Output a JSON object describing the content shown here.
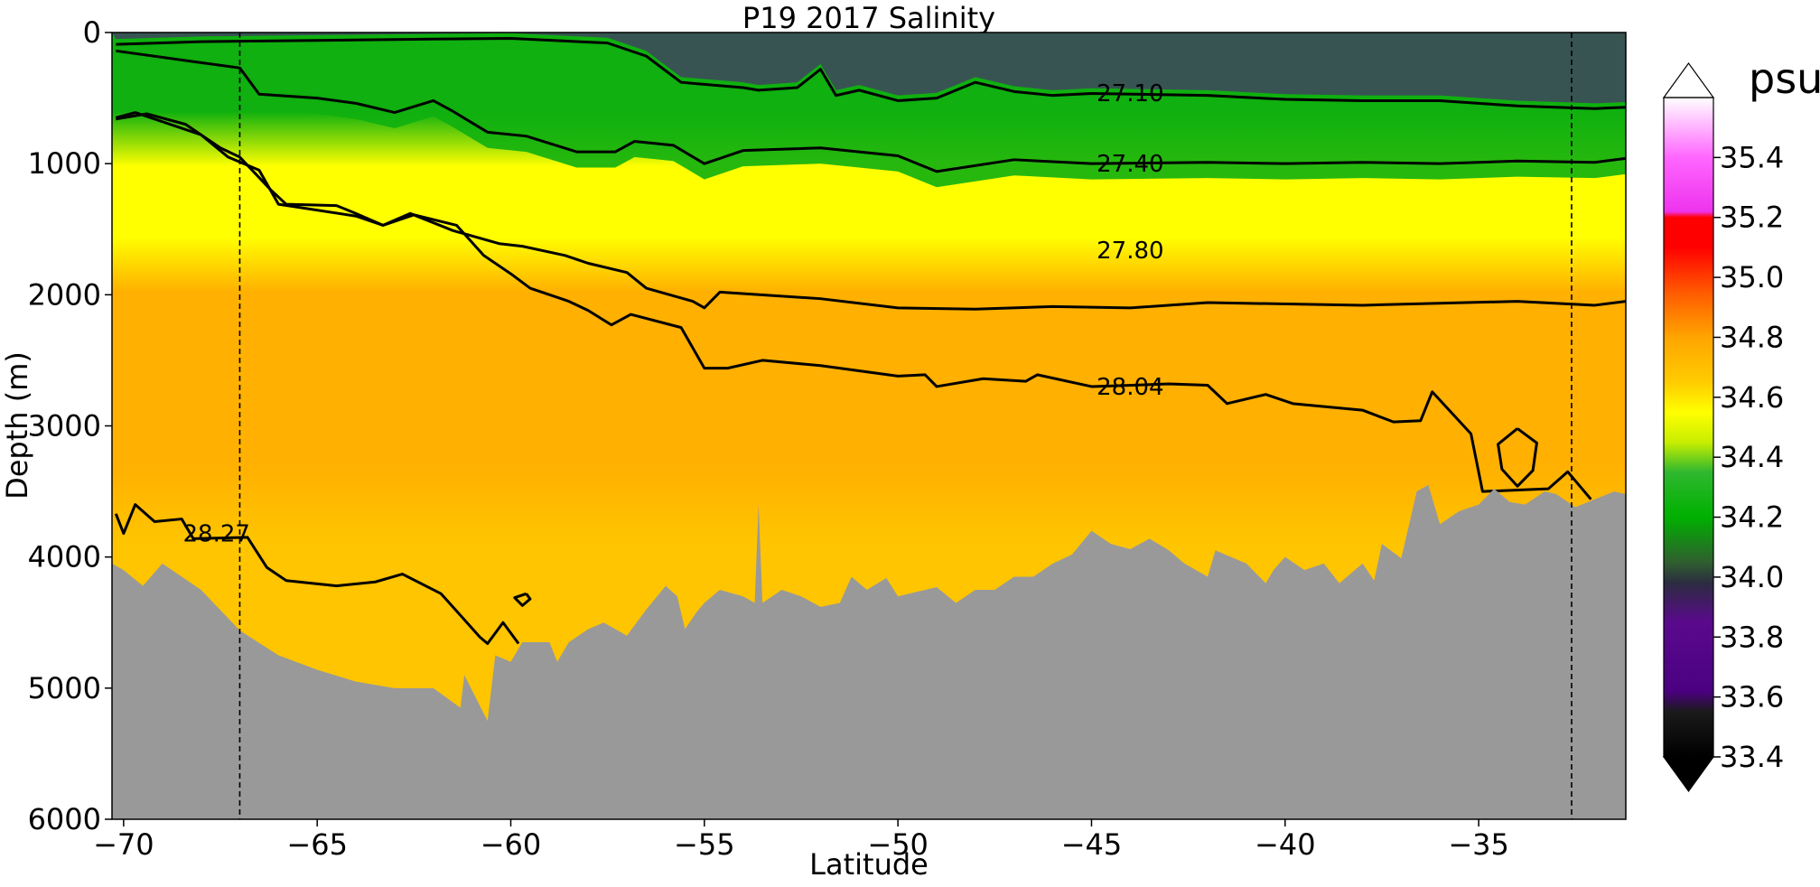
{
  "chart_data": {
    "type": "heatmap",
    "title": "P19 2017 Salinity",
    "xlabel": "Latitude",
    "ylabel": "Depth (m)",
    "xlim": [
      -70.3,
      -31.2
    ],
    "ylim": [
      6000,
      0
    ],
    "x_ticks": [
      -70,
      -65,
      -60,
      -55,
      -50,
      -45,
      -40,
      -35
    ],
    "x_tick_labels": [
      "−70",
      "−65",
      "−60",
      "−55",
      "−50",
      "−45",
      "−40",
      "−35"
    ],
    "y_ticks": [
      0,
      1000,
      2000,
      3000,
      4000,
      5000,
      6000
    ],
    "y_tick_labels": [
      "0",
      "1000",
      "2000",
      "3000",
      "4000",
      "5000",
      "6000"
    ],
    "grid": false,
    "colorbar": {
      "unit": "psu",
      "extend": "both",
      "range": [
        33.4,
        35.6
      ],
      "ticks": [
        33.4,
        33.6,
        33.8,
        34.0,
        34.2,
        34.4,
        34.6,
        34.8,
        35.0,
        35.2,
        35.4
      ],
      "tick_labels": [
        "33.4",
        "33.6",
        "33.8",
        "34.0",
        "34.2",
        "34.4",
        "34.6",
        "34.8",
        "35.0",
        "35.2",
        "35.4"
      ],
      "colors": [
        {
          "value": 33.4,
          "color": "#000000"
        },
        {
          "value": 33.55,
          "color": "#1a1a1a"
        },
        {
          "value": 33.62,
          "color": "#4b0082"
        },
        {
          "value": 33.85,
          "color": "#5a0a8c"
        },
        {
          "value": 33.98,
          "color": "#2c2c40"
        },
        {
          "value": 34.05,
          "color": "#2f5f2f"
        },
        {
          "value": 34.2,
          "color": "#00b000"
        },
        {
          "value": 34.35,
          "color": "#2fb82f"
        },
        {
          "value": 34.45,
          "color": "#c8ee00"
        },
        {
          "value": 34.55,
          "color": "#ffff00"
        },
        {
          "value": 34.65,
          "color": "#ffcc00"
        },
        {
          "value": 34.8,
          "color": "#ffa500"
        },
        {
          "value": 34.95,
          "color": "#ff5a00"
        },
        {
          "value": 35.1,
          "color": "#ff0000"
        },
        {
          "value": 35.2,
          "color": "#ff0000"
        },
        {
          "value": 35.22,
          "color": "#ee33ee"
        },
        {
          "value": 35.4,
          "color": "#ff66ff"
        },
        {
          "value": 35.6,
          "color": "#ffffff"
        }
      ],
      "under_color": "#000000",
      "over_color": "#ffffff"
    },
    "background_colors": {
      "bathymetry": "#999999",
      "surface_fresh": "#5a0a8c",
      "upper_green": "#0fb00f",
      "mid_yellow": "#ffff00",
      "deep_orange": "#ffb000",
      "bottom_orange": "#ffc500"
    },
    "reference_lines_latitude": [
      -67.0,
      -32.6
    ],
    "contours": [
      {
        "label": "27.10",
        "label_position": [
          -44.0,
          460
        ],
        "points": [
          [
            -70.2,
            90
          ],
          [
            -68,
            70
          ],
          [
            -65,
            60
          ],
          [
            -62,
            50
          ],
          [
            -60,
            45
          ],
          [
            -57.5,
            80
          ],
          [
            -56.5,
            180
          ],
          [
            -55.6,
            380
          ],
          [
            -54,
            420
          ],
          [
            -53.6,
            440
          ],
          [
            -52.6,
            420
          ],
          [
            -52,
            280
          ],
          [
            -51.6,
            480
          ],
          [
            -51,
            440
          ],
          [
            -50,
            520
          ],
          [
            -49,
            500
          ],
          [
            -48.5,
            440
          ],
          [
            -48,
            380
          ],
          [
            -47,
            450
          ],
          [
            -46,
            480
          ],
          [
            -45,
            465
          ],
          [
            -42,
            480
          ],
          [
            -40,
            510
          ],
          [
            -38,
            520
          ],
          [
            -36,
            520
          ],
          [
            -34,
            560
          ],
          [
            -32,
            580
          ],
          [
            -31.2,
            570
          ]
        ]
      },
      {
        "label": "27.40",
        "label_position": [
          -44.0,
          1000
        ],
        "points": [
          [
            -70.2,
            140
          ],
          [
            -68,
            230
          ],
          [
            -67,
            270
          ],
          [
            -66.5,
            470
          ],
          [
            -65,
            500
          ],
          [
            -64,
            540
          ],
          [
            -63,
            610
          ],
          [
            -62,
            520
          ],
          [
            -61.5,
            600
          ],
          [
            -60.6,
            760
          ],
          [
            -59.6,
            790
          ],
          [
            -58.3,
            910
          ],
          [
            -57.3,
            910
          ],
          [
            -56.8,
            830
          ],
          [
            -55.8,
            860
          ],
          [
            -55,
            1000
          ],
          [
            -54,
            900
          ],
          [
            -52,
            880
          ],
          [
            -50,
            940
          ],
          [
            -49,
            1060
          ],
          [
            -47,
            970
          ],
          [
            -45,
            1000
          ],
          [
            -42,
            990
          ],
          [
            -40,
            1000
          ],
          [
            -38,
            990
          ],
          [
            -36,
            1000
          ],
          [
            -34,
            980
          ],
          [
            -32,
            990
          ],
          [
            -31.2,
            960
          ]
        ]
      },
      {
        "label": "27.80",
        "label_position": [
          -44.0,
          1660
        ],
        "points": [
          [
            -70.2,
            660
          ],
          [
            -69.4,
            620
          ],
          [
            -68.4,
            700
          ],
          [
            -67.5,
            880
          ],
          [
            -67,
            950
          ],
          [
            -66.2,
            1200
          ],
          [
            -65.8,
            1310
          ],
          [
            -64.5,
            1320
          ],
          [
            -64,
            1380
          ],
          [
            -63.3,
            1470
          ],
          [
            -62.6,
            1380
          ],
          [
            -61.5,
            1510
          ],
          [
            -60.3,
            1610
          ],
          [
            -59.7,
            1630
          ],
          [
            -58.6,
            1700
          ],
          [
            -58,
            1760
          ],
          [
            -57,
            1830
          ],
          [
            -56.5,
            1950
          ],
          [
            -55.3,
            2050
          ],
          [
            -55,
            2100
          ],
          [
            -54.6,
            1980
          ],
          [
            -52,
            2030
          ],
          [
            -50,
            2100
          ],
          [
            -48,
            2110
          ],
          [
            -46,
            2090
          ],
          [
            -44,
            2100
          ],
          [
            -42,
            2060
          ],
          [
            -38,
            2080
          ],
          [
            -34,
            2050
          ],
          [
            -32,
            2080
          ],
          [
            -31.2,
            2050
          ]
        ]
      },
      {
        "label": "28.04",
        "label_position": [
          -44.0,
          2700
        ],
        "points": [
          [
            -70.2,
            650
          ],
          [
            -69.7,
            610
          ],
          [
            -68.8,
            700
          ],
          [
            -68,
            780
          ],
          [
            -67.3,
            950
          ],
          [
            -66.5,
            1050
          ],
          [
            -66,
            1310
          ],
          [
            -64,
            1400
          ],
          [
            -63.3,
            1470
          ],
          [
            -62.5,
            1390
          ],
          [
            -61.4,
            1470
          ],
          [
            -60.7,
            1700
          ],
          [
            -60,
            1840
          ],
          [
            -59.5,
            1950
          ],
          [
            -58.5,
            2050
          ],
          [
            -58,
            2120
          ],
          [
            -57.4,
            2230
          ],
          [
            -56.9,
            2150
          ],
          [
            -55.6,
            2250
          ],
          [
            -55,
            2560
          ],
          [
            -54.4,
            2560
          ],
          [
            -53.5,
            2500
          ],
          [
            -52,
            2540
          ],
          [
            -50,
            2620
          ],
          [
            -49.3,
            2610
          ],
          [
            -49,
            2700
          ],
          [
            -47.8,
            2640
          ],
          [
            -46.7,
            2660
          ],
          [
            -46.4,
            2610
          ],
          [
            -45,
            2700
          ],
          [
            -43,
            2680
          ],
          [
            -42,
            2690
          ],
          [
            -41.5,
            2830
          ],
          [
            -40.5,
            2760
          ],
          [
            -39.8,
            2830
          ],
          [
            -38,
            2880
          ],
          [
            -37.2,
            2970
          ],
          [
            -36.5,
            2960
          ],
          [
            -36.2,
            2740
          ],
          [
            -35.2,
            3060
          ],
          [
            -34.9,
            3500
          ],
          [
            -33.2,
            3480
          ],
          [
            -32.7,
            3350
          ],
          [
            -32.1,
            3560
          ]
        ]
      },
      {
        "label": "28.27",
        "label_position": [
          -67.6,
          3820
        ],
        "points": [
          [
            -70.2,
            3670
          ],
          [
            -70,
            3820
          ],
          [
            -69.7,
            3600
          ],
          [
            -69.2,
            3730
          ],
          [
            -68.5,
            3710
          ],
          [
            -68.2,
            3860
          ],
          [
            -66.8,
            3850
          ],
          [
            -66.3,
            4080
          ],
          [
            -65.8,
            4180
          ],
          [
            -64.5,
            4220
          ],
          [
            -63.5,
            4190
          ],
          [
            -62.8,
            4130
          ],
          [
            -61.8,
            4280
          ],
          [
            -60.8,
            4610
          ],
          [
            -60.6,
            4660
          ],
          [
            -60.2,
            4500
          ],
          [
            -59.8,
            4660
          ]
        ]
      },
      {
        "label": "",
        "label_position": null,
        "points": [
          [
            -34.0,
            3020
          ],
          [
            -34.5,
            3140
          ],
          [
            -34.4,
            3330
          ],
          [
            -34.0,
            3460
          ],
          [
            -33.6,
            3340
          ],
          [
            -33.5,
            3130
          ],
          [
            -34.0,
            3020
          ]
        ]
      },
      {
        "label": "",
        "label_position": null,
        "points": [
          [
            -59.6,
            4280
          ],
          [
            -59.9,
            4310
          ],
          [
            -59.7,
            4370
          ],
          [
            -59.5,
            4320
          ],
          [
            -59.6,
            4280
          ]
        ]
      }
    ],
    "bathymetry": [
      [
        -70.3,
        4050
      ],
      [
        -70,
        4100
      ],
      [
        -69.5,
        4220
      ],
      [
        -69,
        4050
      ],
      [
        -68,
        4250
      ],
      [
        -67,
        4560
      ],
      [
        -66,
        4750
      ],
      [
        -65,
        4860
      ],
      [
        -64,
        4950
      ],
      [
        -63,
        5000
      ],
      [
        -62,
        5000
      ],
      [
        -61.3,
        5150
      ],
      [
        -61.2,
        4900
      ],
      [
        -60.6,
        5250
      ],
      [
        -60.4,
        4750
      ],
      [
        -60,
        4800
      ],
      [
        -59.7,
        4650
      ],
      [
        -59.4,
        4650
      ],
      [
        -59,
        4650
      ],
      [
        -58.8,
        4800
      ],
      [
        -58.5,
        4650
      ],
      [
        -58,
        4550
      ],
      [
        -57.6,
        4500
      ],
      [
        -57,
        4600
      ],
      [
        -56.5,
        4400
      ],
      [
        -56,
        4220
      ],
      [
        -55.7,
        4300
      ],
      [
        -55.5,
        4550
      ],
      [
        -55.2,
        4420
      ],
      [
        -55,
        4350
      ],
      [
        -54.6,
        4250
      ],
      [
        -54,
        4300
      ],
      [
        -53.7,
        4350
      ],
      [
        -53.6,
        3600
      ],
      [
        -53.5,
        4350
      ],
      [
        -53,
        4250
      ],
      [
        -52.5,
        4300
      ],
      [
        -52,
        4380
      ],
      [
        -51.5,
        4350
      ],
      [
        -51.2,
        4150
      ],
      [
        -50.8,
        4250
      ],
      [
        -50.3,
        4160
      ],
      [
        -50,
        4300
      ],
      [
        -49,
        4230
      ],
      [
        -48.5,
        4350
      ],
      [
        -48,
        4250
      ],
      [
        -47.5,
        4250
      ],
      [
        -47,
        4150
      ],
      [
        -46.5,
        4150
      ],
      [
        -46,
        4050
      ],
      [
        -45.5,
        3980
      ],
      [
        -45,
        3800
      ],
      [
        -44.5,
        3900
      ],
      [
        -44,
        3940
      ],
      [
        -43.5,
        3860
      ],
      [
        -43,
        3950
      ],
      [
        -42.6,
        4050
      ],
      [
        -42,
        4150
      ],
      [
        -41.8,
        3950
      ],
      [
        -41,
        4050
      ],
      [
        -40.5,
        4200
      ],
      [
        -40.3,
        4100
      ],
      [
        -40,
        4000
      ],
      [
        -39.5,
        4100
      ],
      [
        -39,
        4050
      ],
      [
        -38.6,
        4200
      ],
      [
        -38,
        4050
      ],
      [
        -37.7,
        4180
      ],
      [
        -37.5,
        3900
      ],
      [
        -37,
        4010
      ],
      [
        -36.6,
        3500
      ],
      [
        -36.3,
        3450
      ],
      [
        -36,
        3750
      ],
      [
        -35.5,
        3650
      ],
      [
        -35,
        3600
      ],
      [
        -34.6,
        3480
      ],
      [
        -34.2,
        3580
      ],
      [
        -33.8,
        3600
      ],
      [
        -33.3,
        3500
      ],
      [
        -33,
        3520
      ],
      [
        -32.5,
        3620
      ],
      [
        -32,
        3560
      ],
      [
        -31.5,
        3500
      ],
      [
        -31.2,
        3520
      ]
    ]
  }
}
